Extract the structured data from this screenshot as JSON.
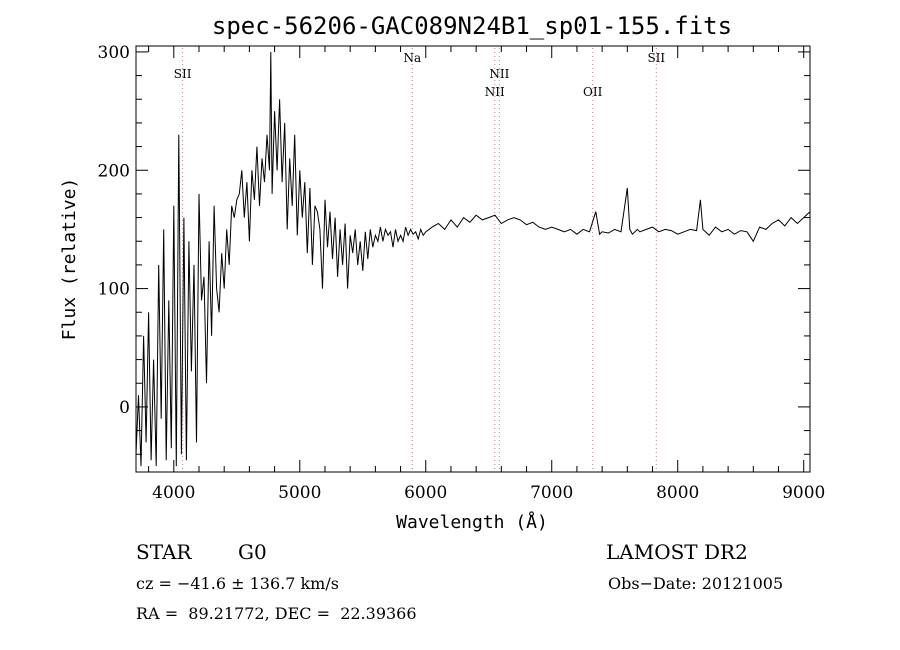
{
  "chart_data": {
    "type": "line",
    "title": "spec-56206-GAC089N24B1_sp01-155.fits",
    "xlabel": "Wavelength (Å)",
    "ylabel": "Flux (relative)",
    "xlim": [
      3700,
      9050
    ],
    "ylim": [
      -55,
      305
    ],
    "xticks": [
      4000,
      5000,
      6000,
      7000,
      8000,
      9000
    ],
    "xtick_labels": [
      "4000",
      "5000",
      "6000",
      "7000",
      "8000",
      "9000"
    ],
    "yticks": [
      0,
      100,
      200,
      300
    ],
    "ytick_labels": [
      "0",
      "100",
      "200",
      "300"
    ],
    "grid": false,
    "legend": "none",
    "line_color": "#000000",
    "marker_color": "#c08080",
    "lines": [
      {
        "label": "SII",
        "wavelength": 4070,
        "label_row": 1
      },
      {
        "label": "Na",
        "wavelength": 5893,
        "label_row": 0
      },
      {
        "label": "NII",
        "wavelength": 6548,
        "label_row": 2
      },
      {
        "label": "NII",
        "wavelength": 6584,
        "label_row": 1
      },
      {
        "label": "OII",
        "wavelength": 7325,
        "label_row": 2
      },
      {
        "label": "SII",
        "wavelength": 7830,
        "label_row": 0
      }
    ],
    "series": [
      {
        "x": [
          3700,
          3720,
          3740,
          3760,
          3780,
          3800,
          3820,
          3840,
          3860,
          3880,
          3900,
          3920,
          3940,
          3960,
          3980,
          4000,
          4020,
          4040,
          4060,
          4080,
          4100,
          4120,
          4140,
          4160,
          4180,
          4200,
          4220,
          4240,
          4260,
          4280,
          4300,
          4320,
          4340,
          4360,
          4380,
          4400,
          4420,
          4440,
          4460,
          4480,
          4500,
          4520,
          4540,
          4560,
          4580,
          4600,
          4620,
          4640,
          4660,
          4680,
          4700,
          4720,
          4740,
          4760,
          4770,
          4780,
          4800,
          4820,
          4840,
          4860,
          4880,
          4900,
          4920,
          4940,
          4960,
          4980,
          5000,
          5020,
          5040,
          5060,
          5080,
          5100,
          5120,
          5140,
          5160,
          5180,
          5200,
          5220,
          5240,
          5260,
          5280,
          5300,
          5320,
          5340,
          5360,
          5380,
          5400,
          5420,
          5440,
          5460,
          5480,
          5500,
          5520,
          5540,
          5560,
          5580,
          5600,
          5620,
          5640,
          5660,
          5680,
          5700,
          5720,
          5740,
          5760,
          5780,
          5800,
          5820,
          5840,
          5860,
          5880,
          5900,
          5920,
          5940,
          5960,
          5980,
          6000,
          6050,
          6100,
          6150,
          6200,
          6250,
          6300,
          6350,
          6400,
          6450,
          6500,
          6550,
          6600,
          6650,
          6700,
          6750,
          6800,
          6850,
          6900,
          6950,
          7000,
          7050,
          7100,
          7150,
          7200,
          7250,
          7300,
          7350,
          7380,
          7400,
          7450,
          7500,
          7550,
          7600,
          7620,
          7640,
          7660,
          7680,
          7700,
          7750,
          7800,
          7850,
          7900,
          7950,
          8000,
          8050,
          8100,
          8150,
          8180,
          8200,
          8250,
          8300,
          8350,
          8400,
          8450,
          8500,
          8550,
          8600,
          8650,
          8700,
          8750,
          8800,
          8850,
          8900,
          8950,
          9000,
          9050
        ],
        "y": [
          -40,
          10,
          -50,
          60,
          -30,
          80,
          -45,
          40,
          -50,
          120,
          -10,
          150,
          -45,
          90,
          -35,
          170,
          -50,
          230,
          -40,
          160,
          -45,
          140,
          30,
          120,
          -30,
          180,
          90,
          110,
          20,
          140,
          60,
          170,
          100,
          80,
          130,
          100,
          150,
          120,
          170,
          160,
          175,
          180,
          200,
          160,
          190,
          140,
          200,
          175,
          220,
          170,
          210,
          190,
          230,
          200,
          300,
          180,
          250,
          200,
          260,
          190,
          240,
          150,
          210,
          170,
          230,
          145,
          200,
          160,
          190,
          130,
          185,
          120,
          170,
          165,
          150,
          100,
          175,
          135,
          165,
          125,
          160,
          110,
          150,
          120,
          155,
          100,
          145,
          130,
          150,
          120,
          140,
          115,
          148,
          125,
          150,
          135,
          145,
          140,
          152,
          140,
          150,
          145,
          148,
          135,
          150,
          140,
          145,
          140,
          152,
          145,
          150,
          146,
          148,
          142,
          150,
          145,
          148,
          152,
          155,
          150,
          158,
          152,
          160,
          156,
          162,
          158,
          160,
          162,
          155,
          158,
          160,
          158,
          154,
          156,
          152,
          150,
          152,
          150,
          148,
          150,
          146,
          150,
          148,
          165,
          146,
          148,
          147,
          150,
          148,
          185,
          150,
          146,
          148,
          150,
          148,
          150,
          152,
          148,
          150,
          149,
          146,
          148,
          150,
          149,
          175,
          150,
          145,
          152,
          148,
          150,
          146,
          149,
          148,
          140,
          152,
          150,
          155,
          158,
          153,
          160,
          155,
          160,
          165
        ]
      }
    ]
  },
  "info": {
    "object_type": "STAR",
    "subclass": "G0",
    "survey": "LAMOST DR2",
    "redshift": "cz = −41.6 ± 136.7 km/s",
    "obs_date": "Obs−Date: 20121005",
    "coords": "RA =  89.21772, DEC =  22.39366"
  }
}
